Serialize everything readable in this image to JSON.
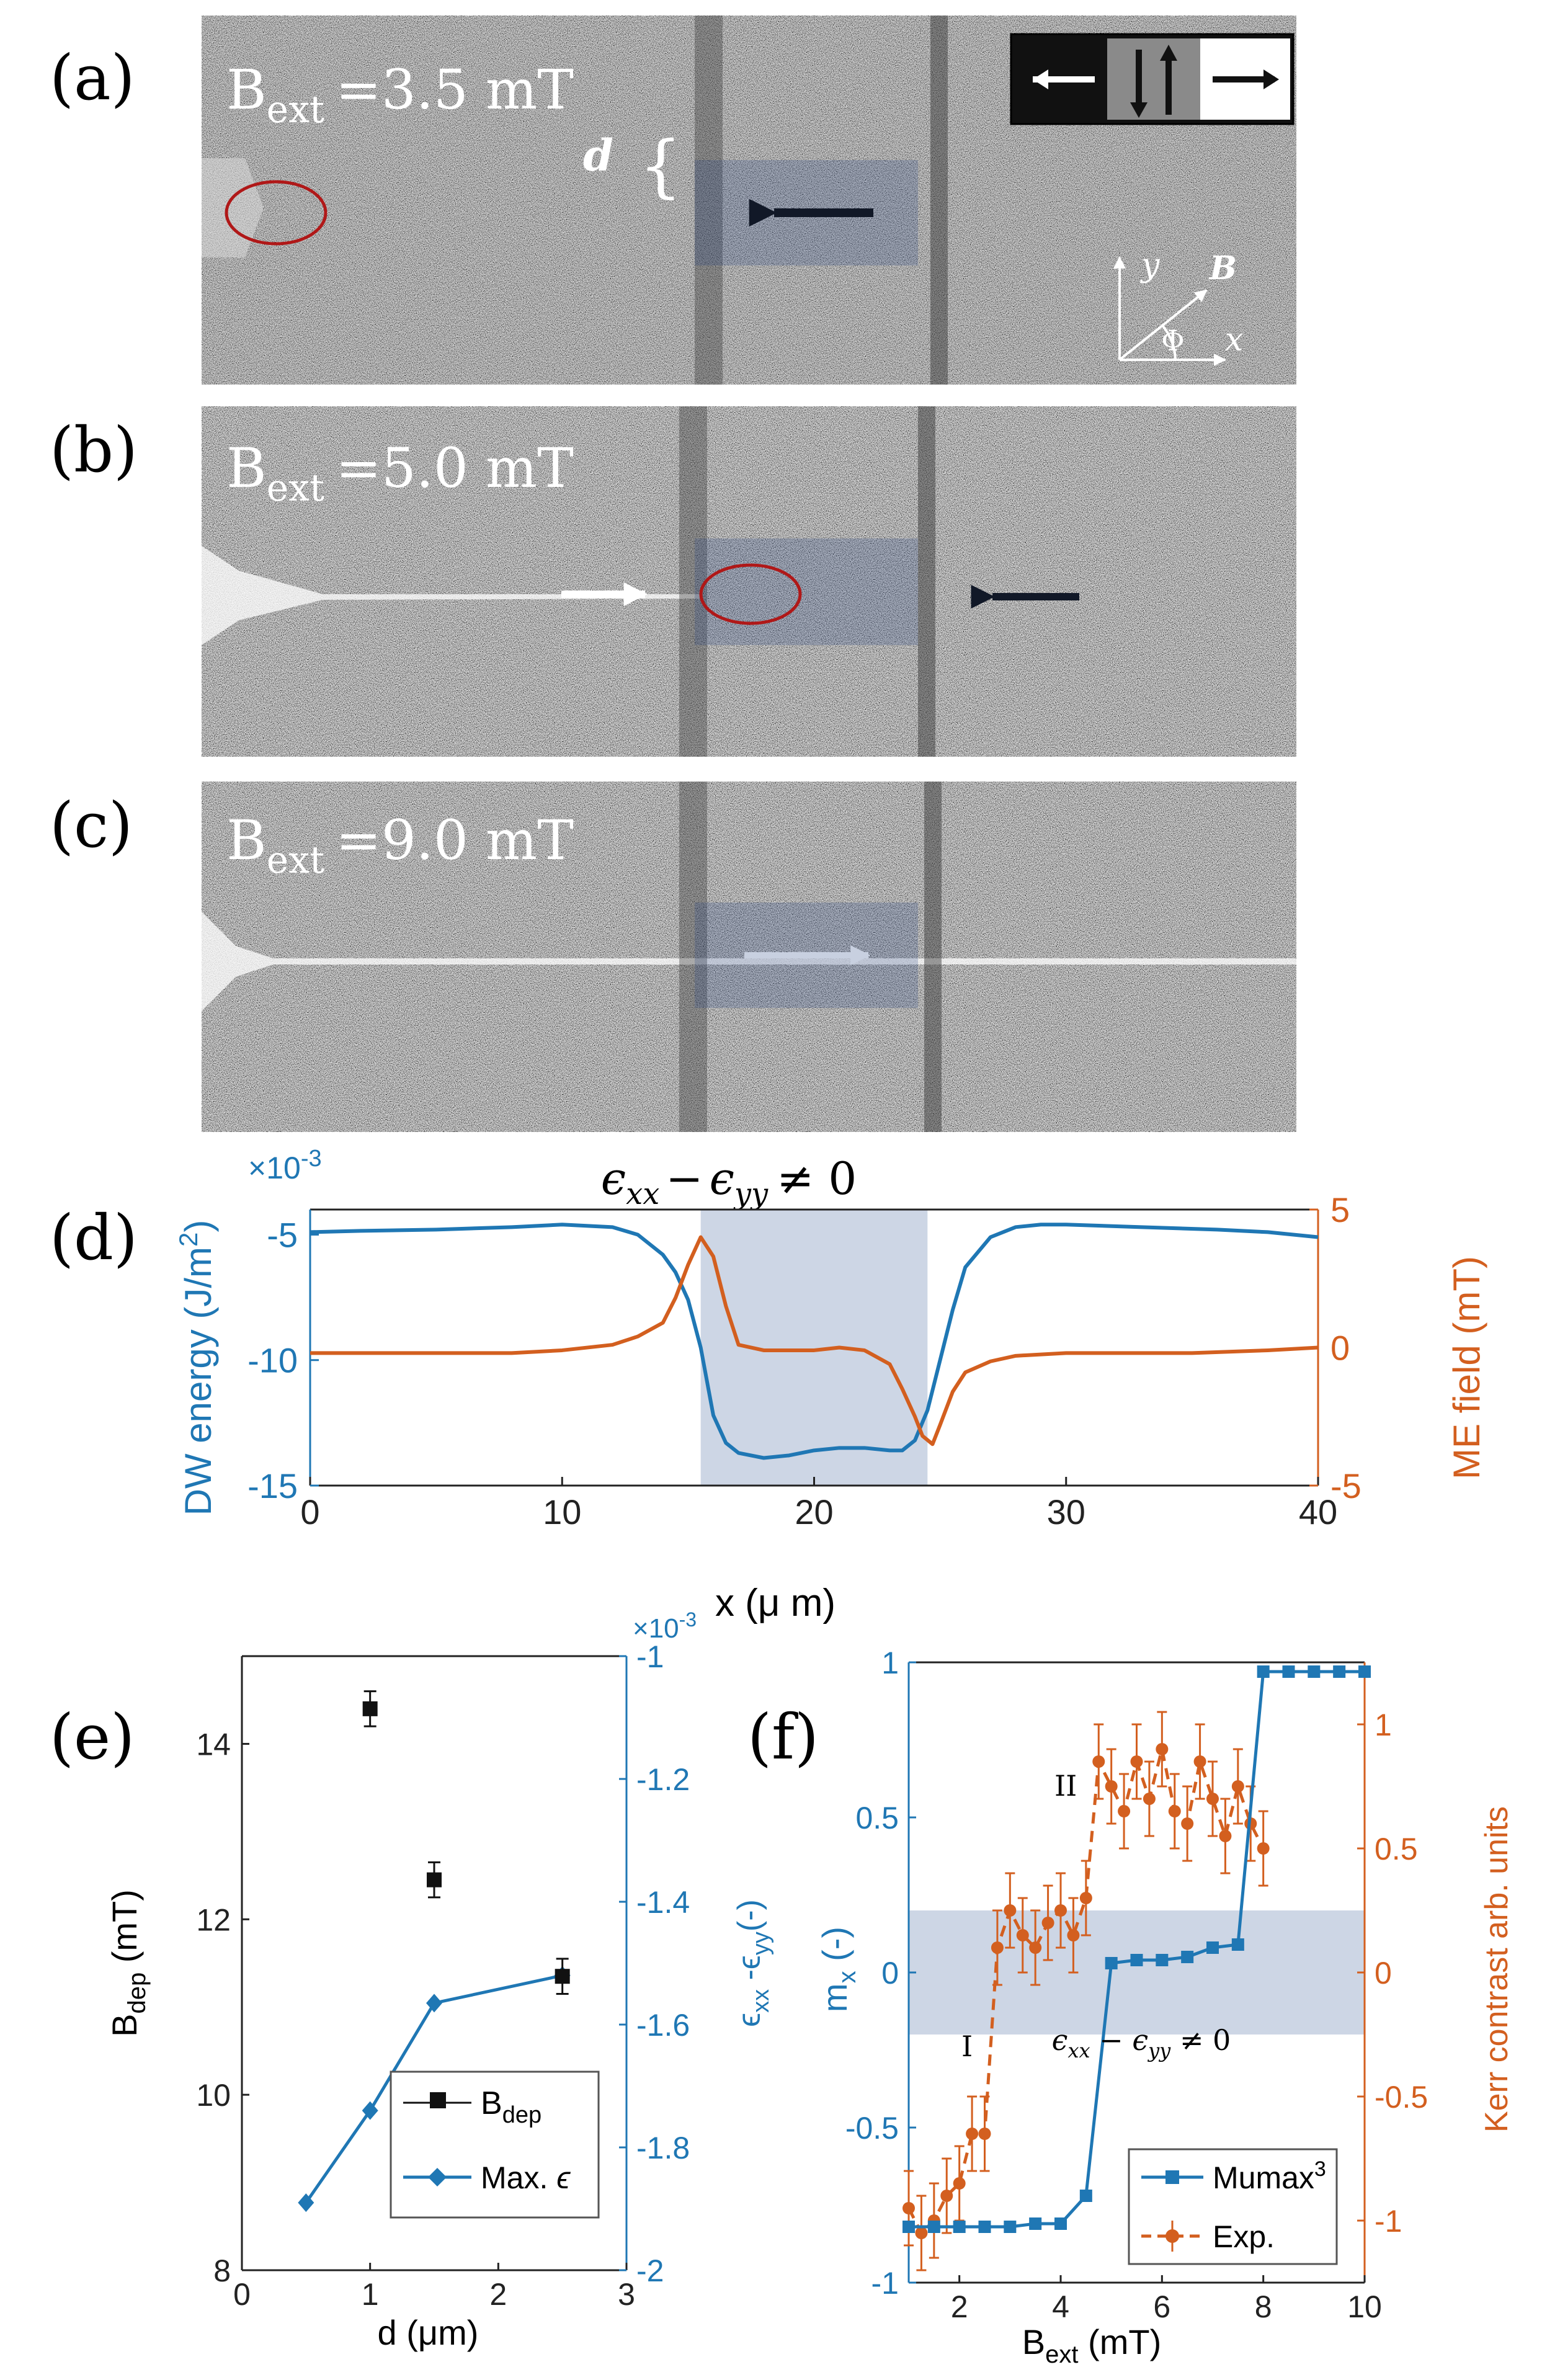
{
  "panel_labels": {
    "a": "(a)",
    "b": "(b)",
    "c": "(c)",
    "d": "(d)",
    "e": "(e)",
    "f": "(f)"
  },
  "kerr_images": [
    {
      "id": "a",
      "field_symbol": "B",
      "field_subscript": "ext",
      "field_value": "=3.5 mT",
      "width_label": "d",
      "width_bracket": "{",
      "arrows": [
        "left-black"
      ],
      "circle": "left-end"
    },
    {
      "id": "b",
      "field_symbol": "B",
      "field_subscript": "ext",
      "field_value": "=5.0 mT",
      "arrows": [
        "right-white",
        "left-black"
      ],
      "circle": "strain-region-entry"
    },
    {
      "id": "c",
      "field_symbol": "B",
      "field_subscript": "ext",
      "field_value": "=9.0 mT",
      "arrows": [
        "right-white"
      ]
    }
  ],
  "legend_box": {
    "colors": [
      "#111111",
      "#8a8a8a",
      "#ffffff"
    ],
    "states": [
      "left",
      "up-down",
      "right"
    ]
  },
  "axes_inset": {
    "y_label": "y",
    "field_label": "B",
    "angle_label": "Φ",
    "x_label": "x"
  },
  "chart_data": [
    {
      "id": "d",
      "type": "line",
      "title": "ε_xx − ε_yy ≠ 0",
      "title_parts": {
        "eps": "ϵ",
        "sub1": "xx",
        "minus": "−",
        "sub2": "yy",
        "neq": "≠ 0"
      },
      "xlabel": "x (μ m)",
      "ylabel_left": "DW energy (J/m²)",
      "ylabel_left_parts": {
        "text": "DW energy (J/m",
        "sup": "2",
        "close": ")"
      },
      "left_multiplier": {
        "base": "×10",
        "exp": "-3"
      },
      "ylabel_right": "ME field (mT)",
      "xlim": [
        0,
        40
      ],
      "ylim_left": [
        -15,
        -4
      ],
      "ylim_right": [
        -5,
        5
      ],
      "x_ticks": [
        "0",
        "10",
        "20",
        "30",
        "40"
      ],
      "y_ticks_left": [
        "-5",
        "-10",
        "-15"
      ],
      "y_ticks_right": [
        "5",
        "0",
        "-5"
      ],
      "shaded_region": [
        15.5,
        24.5
      ],
      "colors": {
        "left": "#1f77b4",
        "right": "#d35f1f",
        "shade": "#bcc8dc"
      },
      "series": [
        {
          "name": "DW energy",
          "axis": "left",
          "x": [
            0,
            2,
            5,
            8,
            10,
            12,
            13,
            14,
            14.5,
            15,
            15.5,
            16,
            16.5,
            17,
            18,
            19,
            20,
            21,
            22,
            23,
            23.5,
            24,
            24.5,
            25,
            25.5,
            26,
            27,
            28,
            29,
            30,
            33,
            36,
            38,
            40
          ],
          "y": [
            -4.9,
            -4.85,
            -4.8,
            -4.7,
            -4.6,
            -4.7,
            -5.0,
            -5.8,
            -6.5,
            -7.6,
            -9.5,
            -12.2,
            -13.3,
            -13.7,
            -13.9,
            -13.8,
            -13.6,
            -13.5,
            -13.5,
            -13.6,
            -13.6,
            -13.2,
            -12.0,
            -10.0,
            -8.0,
            -6.3,
            -5.1,
            -4.7,
            -4.6,
            -4.6,
            -4.7,
            -4.8,
            -4.9,
            -5.1
          ]
        },
        {
          "name": "ME field",
          "axis": "right",
          "x": [
            0,
            2,
            5,
            8,
            10,
            12,
            13,
            14,
            14.5,
            15,
            15.5,
            16,
            16.5,
            17,
            18,
            19,
            20,
            21,
            22,
            23,
            23.5,
            24,
            24.3,
            24.7,
            25,
            25.5,
            26,
            27,
            28,
            30,
            35,
            38,
            40
          ],
          "y": [
            -0.2,
            -0.2,
            -0.2,
            -0.2,
            -0.1,
            0.1,
            0.4,
            0.9,
            1.8,
            3.0,
            4.0,
            3.3,
            1.5,
            0.1,
            -0.1,
            -0.1,
            -0.1,
            0.0,
            -0.1,
            -0.6,
            -1.5,
            -2.5,
            -3.2,
            -3.5,
            -2.8,
            -1.6,
            -0.9,
            -0.5,
            -0.3,
            -0.2,
            -0.2,
            -0.1,
            0.0
          ]
        }
      ]
    },
    {
      "id": "e",
      "type": "scatter",
      "xlabel": "d (μm)",
      "ylabel_left": "B_dep (mT)",
      "ylabel_left_parts": {
        "base": "B",
        "sub": "dep",
        "unit": " (mT)"
      },
      "ylabel_right": "ε_xx - ε_yy (-)",
      "ylabel_right_parts": {
        "eps": "ϵ",
        "sub1": "xx",
        "mid": " -ϵ",
        "sub2": "yy",
        "unit": "(-)"
      },
      "right_multiplier": {
        "base": "×10",
        "exp": "-3"
      },
      "xlim": [
        0,
        3
      ],
      "ylim_left": [
        8,
        15
      ],
      "ylim_right": [
        -2,
        -1
      ],
      "x_ticks": [
        "0",
        "1",
        "2",
        "3"
      ],
      "y_ticks_left": [
        "14",
        "12",
        "10",
        "8"
      ],
      "y_ticks_right": [
        "-1",
        "-1.2",
        "-1.4",
        "-1.6",
        "-1.8",
        "-2"
      ],
      "legend": {
        "position": "bottom-right",
        "entries": [
          "B_dep",
          "Max. ε"
        ],
        "bdep_parts": {
          "base": "B",
          "sub": "dep"
        },
        "eps_parts": {
          "text": "Max. ",
          "eps": "ϵ"
        }
      },
      "colors": {
        "bdep": "#111111",
        "eps": "#1f77b4"
      },
      "series": [
        {
          "name": "B_dep",
          "axis": "left",
          "x": [
            1.0,
            1.5,
            2.5
          ],
          "y": [
            14.4,
            12.45,
            11.35
          ],
          "err": [
            0.2,
            0.2,
            0.2
          ]
        },
        {
          "name": "Max. ε",
          "axis": "right",
          "x": [
            0.5,
            1.0,
            1.5,
            2.5
          ],
          "y": [
            -1.89,
            -1.74,
            -1.565,
            -1.52
          ]
        }
      ]
    },
    {
      "id": "f",
      "type": "line",
      "xlabel": "B_ext (mT)",
      "xlabel_parts": {
        "base": "B",
        "sub": "ext",
        "unit": " (mT)"
      },
      "ylabel_left": "m_x (-)",
      "ylabel_left_parts": {
        "base": "m",
        "sub": "x",
        "unit": " (-)"
      },
      "ylabel_right": "Kerr contrast arb. units",
      "xlim": [
        1,
        10
      ],
      "ylim_left": [
        -1,
        1
      ],
      "ylim_right": [
        -1.25,
        1.25
      ],
      "x_ticks": [
        "2",
        "4",
        "6",
        "8",
        "10"
      ],
      "y_ticks_left": [
        "1",
        "0.5",
        "0",
        "-0.5",
        "-1"
      ],
      "y_ticks_right": [
        "1",
        "0.5",
        "0",
        "-0.5",
        "-1"
      ],
      "shaded_band_left": [
        -0.2,
        0.2
      ],
      "annotation": {
        "eps": "ϵ",
        "sub1": "xx",
        "minus": " − ϵ",
        "sub2": "yy",
        "neq": " ≠ 0"
      },
      "region_labels": [
        "I",
        "II"
      ],
      "legend": {
        "position": "bottom-right",
        "entries": [
          "Mumax³",
          "Exp."
        ],
        "mumax_parts": {
          "base": "Mumax",
          "sup": "3"
        }
      },
      "colors": {
        "mumax": "#1f77b4",
        "exp": "#d35f1f",
        "shade": "#bcc8dc"
      },
      "series": [
        {
          "name": "Mumax³",
          "axis": "left",
          "x": [
            1.0,
            1.5,
            2.0,
            2.5,
            3.0,
            3.5,
            4.0,
            4.5,
            5.0,
            5.5,
            6.0,
            6.5,
            7.0,
            7.5,
            8.0,
            8.5,
            9.0,
            9.5,
            10.0
          ],
          "y": [
            -0.82,
            -0.82,
            -0.82,
            -0.82,
            -0.82,
            -0.81,
            -0.81,
            -0.72,
            0.03,
            0.04,
            0.04,
            0.05,
            0.08,
            0.09,
            0.97,
            0.97,
            0.97,
            0.97,
            0.97
          ]
        },
        {
          "name": "Exp.",
          "axis": "right",
          "x": [
            1.0,
            1.25,
            1.5,
            1.75,
            2.0,
            2.25,
            2.5,
            2.75,
            3.0,
            3.25,
            3.5,
            3.75,
            4.0,
            4.25,
            4.5,
            4.75,
            5.0,
            5.25,
            5.5,
            5.75,
            6.0,
            6.25,
            6.5,
            6.75,
            7.0,
            7.25,
            7.5,
            7.75,
            8.0
          ],
          "y": [
            -0.95,
            -1.05,
            -1.0,
            -0.9,
            -0.85,
            -0.65,
            -0.65,
            0.1,
            0.25,
            0.15,
            0.1,
            0.2,
            0.25,
            0.15,
            0.3,
            0.85,
            0.75,
            0.65,
            0.85,
            0.7,
            0.9,
            0.65,
            0.6,
            0.85,
            0.7,
            0.55,
            0.75,
            0.6,
            0.5
          ],
          "err": [
            0.15,
            0.15,
            0.15,
            0.15,
            0.15,
            0.15,
            0.15,
            0.15,
            0.15,
            0.15,
            0.15,
            0.15,
            0.15,
            0.15,
            0.15,
            0.15,
            0.15,
            0.15,
            0.15,
            0.15,
            0.15,
            0.15,
            0.15,
            0.15,
            0.15,
            0.15,
            0.15,
            0.15,
            0.15
          ]
        }
      ]
    }
  ]
}
